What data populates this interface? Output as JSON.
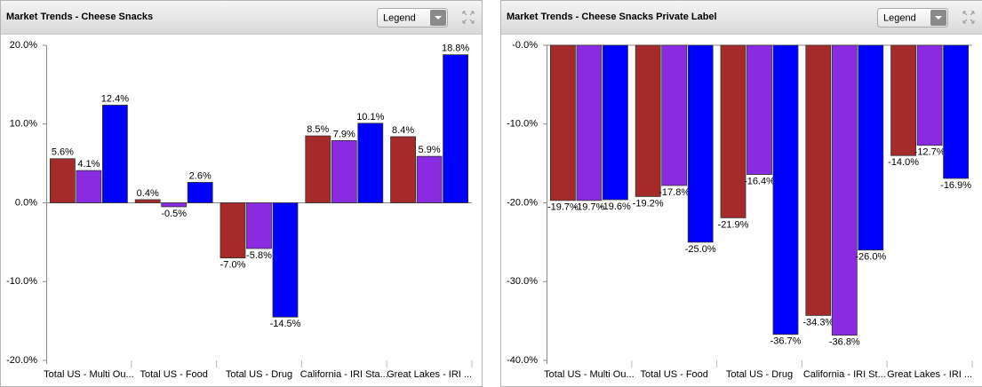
{
  "chart_data": [
    {
      "type": "bar",
      "title": "Market Trends - Cheese Snacks",
      "legend_control": "Legend",
      "categories": [
        "Total US - Multi Ou...",
        "Total US - Food",
        "Total US - Drug",
        "California - IRI Sta...",
        "Great Lakes - IRI ..."
      ],
      "series": [
        {
          "color": "#a52a2a",
          "values": [
            5.6,
            0.4,
            -7.0,
            8.5,
            8.4
          ],
          "value_labels": [
            "5.6%",
            "0.4%",
            "-7.0%",
            "8.5%",
            "8.4%"
          ]
        },
        {
          "color": "#8a2be2",
          "values": [
            4.1,
            -0.5,
            -5.8,
            7.9,
            5.9
          ],
          "value_labels": [
            "4.1%",
            "-0.5%",
            "-5.8%",
            "7.9%",
            "5.9%"
          ]
        },
        {
          "color": "#0000ff",
          "values": [
            12.4,
            2.6,
            -14.5,
            10.1,
            18.8
          ],
          "value_labels": [
            "12.4%",
            "2.6%",
            "-14.5%",
            "10.1%",
            "18.8%"
          ]
        }
      ],
      "ylim": [
        -20,
        20
      ],
      "yticks": [
        {
          "value": -20,
          "label": "-20.0%"
        },
        {
          "value": -10,
          "label": "-10.0%"
        },
        {
          "value": 0,
          "label": "0.0%"
        },
        {
          "value": 10,
          "label": "10.0%"
        },
        {
          "value": 20,
          "label": "20.0%"
        }
      ],
      "grid": false
    },
    {
      "type": "bar",
      "title": "Market Trends - Cheese Snacks Private Label",
      "legend_control": "Legend",
      "categories": [
        "Total US - Multi Ou...",
        "Total US - Food",
        "Total US - Drug",
        "California - IRI St...",
        "Great Lakes - IRI ..."
      ],
      "series": [
        {
          "color": "#a52a2a",
          "values": [
            -19.7,
            -19.2,
            -21.9,
            -34.3,
            -14.0
          ],
          "value_labels": [
            "-19.7%",
            "-19.2%",
            "-21.9%",
            "-34.3%",
            "-14.0%"
          ]
        },
        {
          "color": "#8a2be2",
          "values": [
            -19.7,
            -17.8,
            -16.4,
            -36.8,
            -12.7
          ],
          "value_labels": [
            "-19.7%",
            "-17.8%",
            "-16.4%",
            "-36.8%",
            "-12.7%"
          ]
        },
        {
          "color": "#0000ff",
          "values": [
            -19.6,
            -25.0,
            -36.7,
            -26.0,
            -16.9
          ],
          "value_labels": [
            "-19.6%",
            "-25.0%",
            "-36.7%",
            "-26.0%",
            "-16.9%"
          ]
        }
      ],
      "ylim": [
        -40,
        0
      ],
      "yticks": [
        {
          "value": -40,
          "label": "-40.0%"
        },
        {
          "value": -30,
          "label": "-30.0%"
        },
        {
          "value": -20,
          "label": "-20.0%"
        },
        {
          "value": -10,
          "label": "-10.0%"
        },
        {
          "value": 0,
          "label": "-0.0%"
        }
      ],
      "grid": false
    }
  ]
}
